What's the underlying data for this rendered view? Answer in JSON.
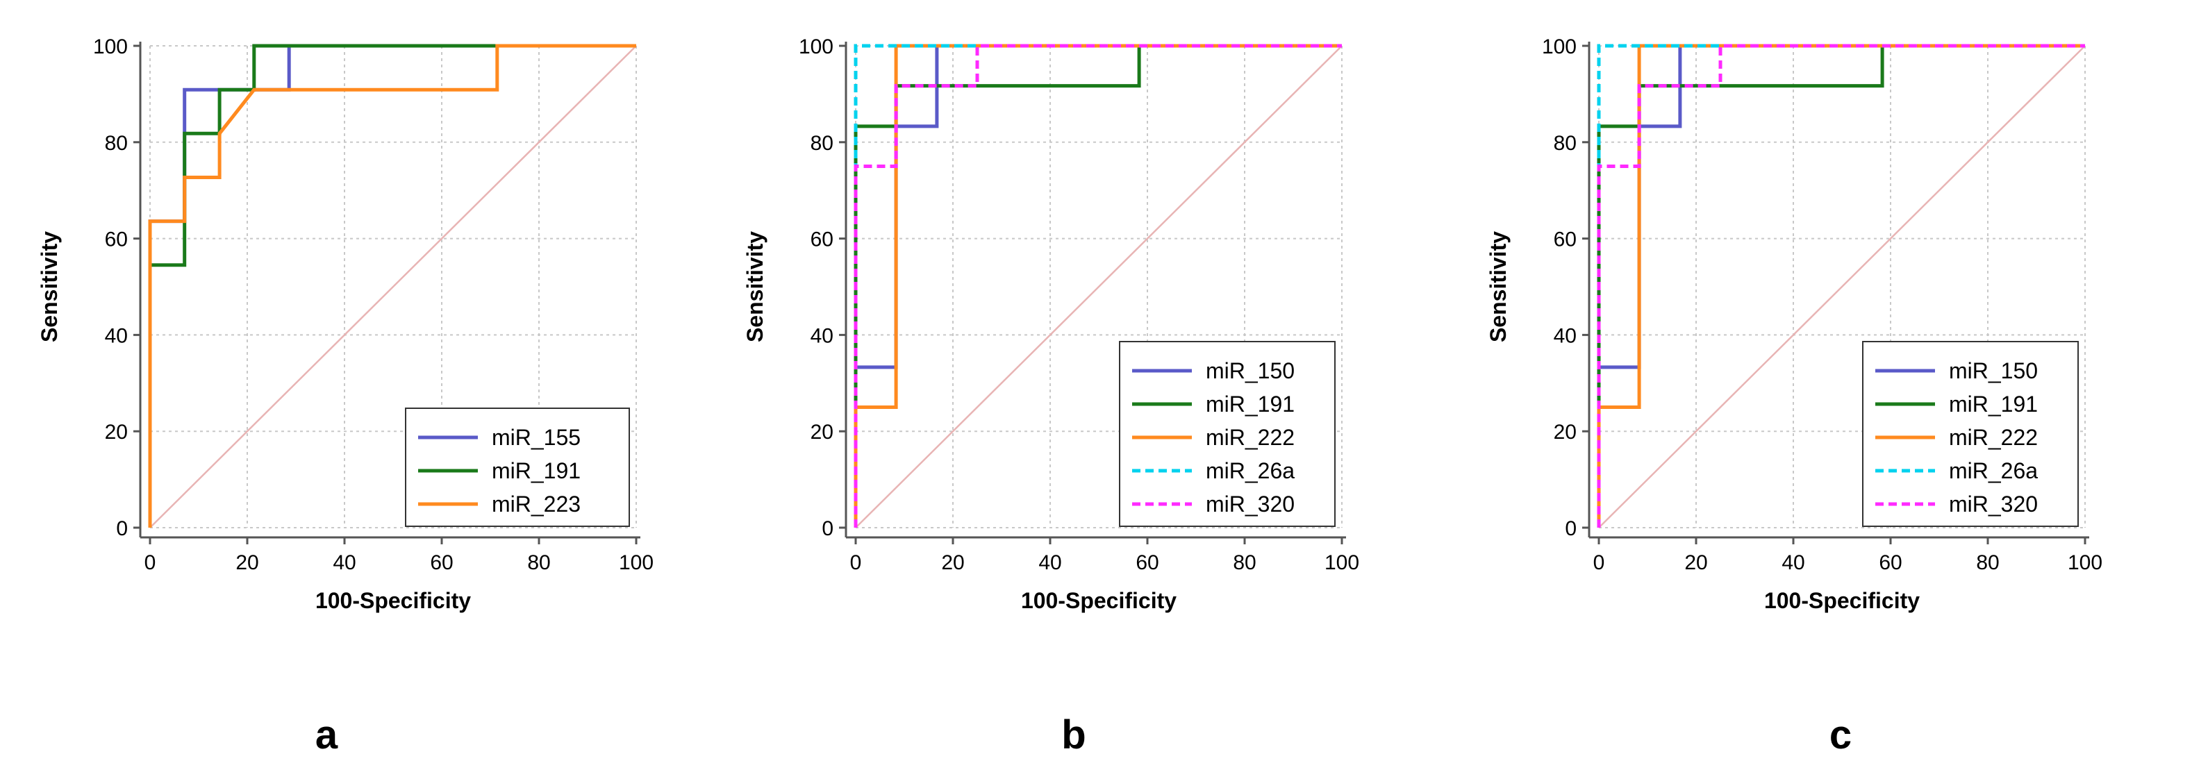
{
  "figure": {
    "panel_letters": [
      "a",
      "b",
      "c"
    ]
  },
  "colors": {
    "blue": "#5a5ac8",
    "green": "#1a7a1a",
    "orange": "#ff8a1f",
    "cyan": "#00d2ee",
    "magenta": "#ff2aff",
    "diagonal": "#e8b4b4",
    "grid": "#c8c8c8",
    "axis": "#555555"
  },
  "chart_data": [
    {
      "type": "line",
      "panel": "a",
      "title": "",
      "xlabel": "100-Specificity",
      "ylabel": "Sensitivity",
      "xlim": [
        0,
        100
      ],
      "ylim": [
        0,
        100
      ],
      "xticks": [
        0,
        20,
        40,
        60,
        80,
        100
      ],
      "yticks": [
        0,
        20,
        40,
        60,
        80,
        100
      ],
      "grid": true,
      "legend_position": "bottom-right",
      "reference_line": {
        "x": [
          0,
          100
        ],
        "y": [
          0,
          100
        ]
      },
      "series": [
        {
          "name": "miR_155",
          "color": "blue",
          "dash": false,
          "x": [
            0,
            0,
            7.1,
            7.1,
            14.3,
            14.3,
            28.6,
            28.6,
            100
          ],
          "y": [
            0,
            63.6,
            63.6,
            90.9,
            90.9,
            90.9,
            90.9,
            100,
            100
          ]
        },
        {
          "name": "miR_191",
          "color": "green",
          "dash": false,
          "x": [
            0,
            0,
            7.1,
            7.1,
            14.3,
            14.3,
            21.4,
            21.4,
            100
          ],
          "y": [
            0,
            54.5,
            54.5,
            81.8,
            81.8,
            90.9,
            90.9,
            100,
            100
          ]
        },
        {
          "name": "miR_223",
          "color": "orange",
          "dash": false,
          "x": [
            0,
            0,
            7.1,
            7.1,
            14.3,
            14.3,
            21.4,
            71.4,
            71.4,
            100
          ],
          "y": [
            0,
            63.6,
            63.6,
            72.7,
            72.7,
            81.8,
            90.9,
            90.9,
            100,
            100
          ]
        }
      ]
    },
    {
      "type": "line",
      "panel": "b",
      "title": "",
      "xlabel": "100-Specificity",
      "ylabel": "Sensitivity",
      "xlim": [
        0,
        100
      ],
      "ylim": [
        0,
        100
      ],
      "xticks": [
        0,
        20,
        40,
        60,
        80,
        100
      ],
      "yticks": [
        0,
        20,
        40,
        60,
        80,
        100
      ],
      "grid": true,
      "legend_position": "bottom-right",
      "reference_line": {
        "x": [
          0,
          100
        ],
        "y": [
          0,
          100
        ]
      },
      "series": [
        {
          "name": "miR_150",
          "color": "blue",
          "dash": false,
          "x": [
            0,
            0,
            8.3,
            8.3,
            16.7,
            16.7,
            100
          ],
          "y": [
            0,
            33.3,
            33.3,
            83.3,
            83.3,
            100,
            100
          ]
        },
        {
          "name": "miR_191",
          "color": "green",
          "dash": false,
          "x": [
            0,
            0,
            8.3,
            8.3,
            58.3,
            58.3,
            100
          ],
          "y": [
            0,
            83.3,
            83.3,
            91.7,
            91.7,
            100,
            100
          ]
        },
        {
          "name": "miR_222",
          "color": "orange",
          "dash": false,
          "x": [
            0,
            0,
            8.3,
            8.3,
            100
          ],
          "y": [
            0,
            25,
            25,
            100,
            100
          ]
        },
        {
          "name": "miR_26a",
          "color": "cyan",
          "dash": true,
          "x": [
            0,
            0,
            100
          ],
          "y": [
            0,
            100,
            100
          ]
        },
        {
          "name": "miR_320",
          "color": "magenta",
          "dash": true,
          "x": [
            0,
            0,
            8.3,
            8.3,
            25,
            25,
            100
          ],
          "y": [
            0,
            75,
            75,
            91.7,
            91.7,
            100,
            100
          ]
        }
      ]
    },
    {
      "type": "line",
      "panel": "c",
      "title": "",
      "xlabel": "100-Specificity",
      "ylabel": "Sensitivity",
      "xlim": [
        0,
        100
      ],
      "ylim": [
        0,
        100
      ],
      "xticks": [
        0,
        20,
        40,
        60,
        80,
        100
      ],
      "yticks": [
        0,
        20,
        40,
        60,
        80,
        100
      ],
      "grid": true,
      "legend_position": "bottom-right",
      "reference_line": {
        "x": [
          0,
          100
        ],
        "y": [
          0,
          100
        ]
      },
      "series": [
        {
          "name": "miR_150",
          "color": "blue",
          "dash": false,
          "x": [
            0,
            0,
            8.3,
            8.3,
            16.7,
            16.7,
            100
          ],
          "y": [
            0,
            33.3,
            33.3,
            83.3,
            83.3,
            100,
            100
          ]
        },
        {
          "name": "miR_191",
          "color": "green",
          "dash": false,
          "x": [
            0,
            0,
            8.3,
            8.3,
            58.3,
            58.3,
            100
          ],
          "y": [
            0,
            83.3,
            83.3,
            91.7,
            91.7,
            100,
            100
          ]
        },
        {
          "name": "miR_222",
          "color": "orange",
          "dash": false,
          "x": [
            0,
            0,
            8.3,
            8.3,
            100
          ],
          "y": [
            0,
            25,
            25,
            100,
            100
          ]
        },
        {
          "name": "miR_26a",
          "color": "cyan",
          "dash": true,
          "x": [
            0,
            0,
            100
          ],
          "y": [
            0,
            100,
            100
          ]
        },
        {
          "name": "miR_320",
          "color": "magenta",
          "dash": true,
          "x": [
            0,
            0,
            8.3,
            8.3,
            25,
            25,
            100
          ],
          "y": [
            0,
            75,
            75,
            91.7,
            91.7,
            100,
            100
          ]
        }
      ]
    }
  ]
}
